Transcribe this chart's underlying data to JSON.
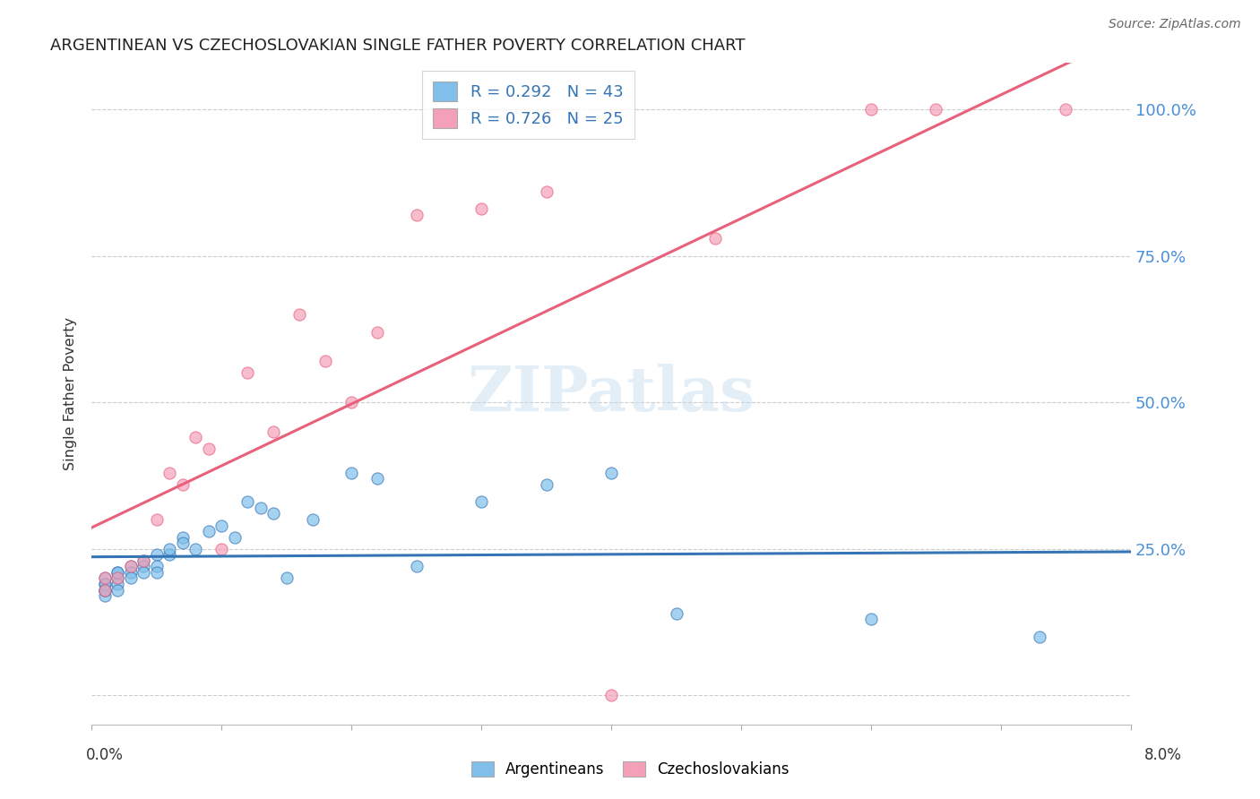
{
  "title": "ARGENTINEAN VS CZECHOSLOVAKIAN SINGLE FATHER POVERTY CORRELATION CHART",
  "source": "Source: ZipAtlas.com",
  "ylabel": "Single Father Poverty",
  "xmin": 0.0,
  "xmax": 0.08,
  "ymin": -0.05,
  "ymax": 1.08,
  "ytick_vals": [
    0.0,
    0.25,
    0.5,
    0.75,
    1.0
  ],
  "ytick_labels": [
    "",
    "25.0%",
    "50.0%",
    "75.0%",
    "100.0%"
  ],
  "blue_color": "#7fbfea",
  "pink_color": "#f4a0b8",
  "blue_line_color": "#3575b5",
  "pink_line_color": "#e8607a",
  "legend_blue_label": "R = 0.292   N = 43",
  "legend_pink_label": "R = 0.726   N = 25",
  "argentinean_x": [
    0.001,
    0.001,
    0.001,
    0.001,
    0.001,
    0.001,
    0.001,
    0.002,
    0.002,
    0.002,
    0.002,
    0.002,
    0.003,
    0.003,
    0.003,
    0.004,
    0.004,
    0.004,
    0.005,
    0.005,
    0.005,
    0.006,
    0.006,
    0.007,
    0.007,
    0.008,
    0.009,
    0.01,
    0.011,
    0.012,
    0.013,
    0.014,
    0.015,
    0.017,
    0.02,
    0.022,
    0.025,
    0.03,
    0.035,
    0.04,
    0.045,
    0.06,
    0.073
  ],
  "argentinean_y": [
    0.18,
    0.19,
    0.2,
    0.18,
    0.17,
    0.19,
    0.18,
    0.2,
    0.19,
    0.21,
    0.21,
    0.18,
    0.22,
    0.21,
    0.2,
    0.23,
    0.22,
    0.21,
    0.24,
    0.22,
    0.21,
    0.24,
    0.25,
    0.27,
    0.26,
    0.25,
    0.28,
    0.29,
    0.27,
    0.33,
    0.32,
    0.31,
    0.2,
    0.3,
    0.38,
    0.37,
    0.22,
    0.33,
    0.36,
    0.38,
    0.14,
    0.13,
    0.1
  ],
  "czechoslovakian_x": [
    0.001,
    0.001,
    0.002,
    0.003,
    0.004,
    0.005,
    0.006,
    0.007,
    0.008,
    0.009,
    0.01,
    0.012,
    0.014,
    0.016,
    0.018,
    0.02,
    0.022,
    0.025,
    0.03,
    0.035,
    0.04,
    0.048,
    0.06,
    0.065,
    0.075
  ],
  "czechoslovakian_y": [
    0.18,
    0.2,
    0.2,
    0.22,
    0.23,
    0.3,
    0.38,
    0.36,
    0.44,
    0.42,
    0.25,
    0.55,
    0.45,
    0.65,
    0.57,
    0.5,
    0.62,
    0.82,
    0.83,
    0.86,
    0.0,
    0.78,
    1.0,
    1.0,
    1.0
  ]
}
